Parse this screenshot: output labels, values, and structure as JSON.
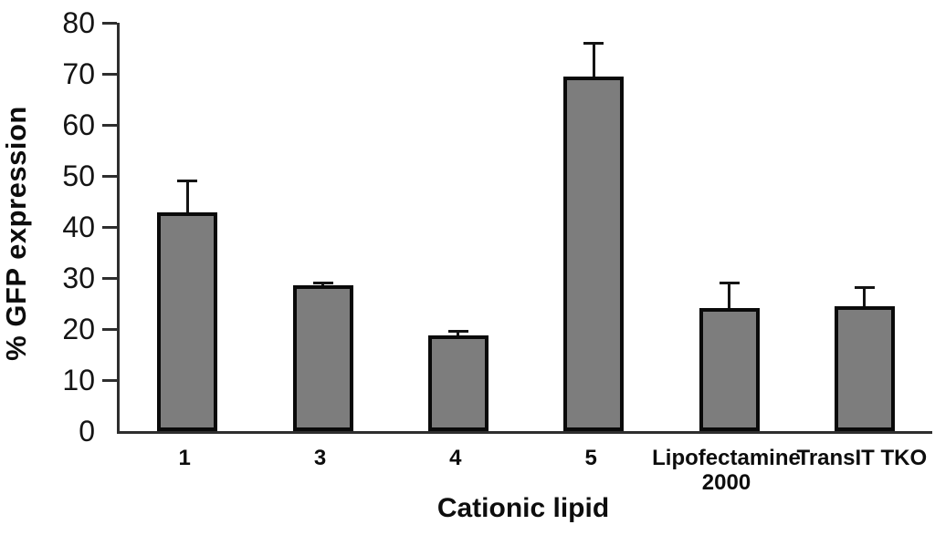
{
  "figure": {
    "background": "#ffffff"
  },
  "chart_data": {
    "type": "bar",
    "title": "",
    "xlabel": "Cationic lipid",
    "ylabel": "% GFP expression",
    "categories": [
      "1",
      "3",
      "4",
      "5",
      "Lipofectamine\n2000",
      "TransIT TKO"
    ],
    "values": [
      42.8,
      28.5,
      18.7,
      69.5,
      24.1,
      24.4
    ],
    "errors": [
      6.4,
      0.8,
      1.1,
      6.8,
      5.2,
      4.0
    ],
    "error_direction": "up",
    "ylim": [
      0,
      80
    ],
    "yticks": [
      0,
      10,
      20,
      30,
      40,
      50,
      60,
      70,
      80
    ],
    "grid": false,
    "bar_fill": "#7d7d7d",
    "bar_border": "#0a0a0a",
    "axis_color": "#2e2e2e",
    "text_color": "#0d0d0d"
  }
}
